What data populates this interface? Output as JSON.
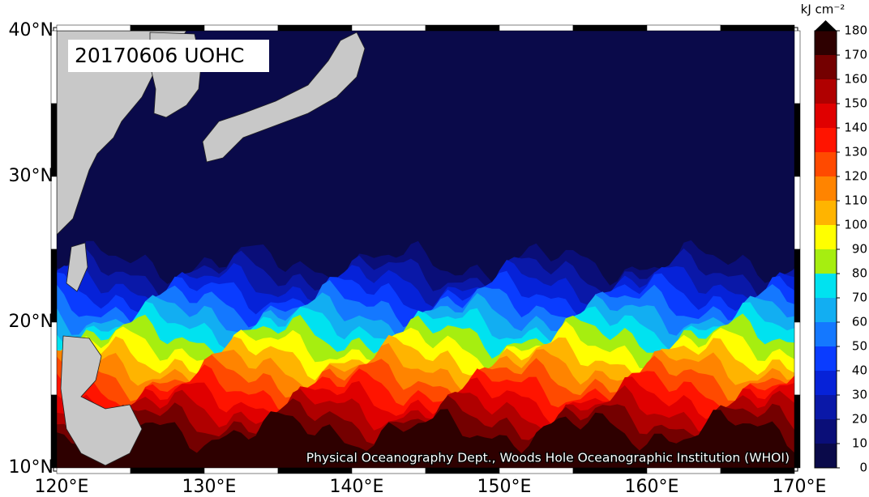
{
  "title": "20170606 UOHC",
  "credit": "Physical Oceanography Dept., Woods Hole Oceanographic Institution (WHOI)",
  "x_axis": {
    "ticks": [
      "120°E",
      "130°E",
      "140°E",
      "150°E",
      "160°E",
      "170°E"
    ]
  },
  "y_axis": {
    "ticks": [
      "10°N",
      "20°N",
      "30°N",
      "40°N"
    ]
  },
  "colorbar": {
    "unit": "kJ cm⁻²",
    "ticks": [
      0,
      10,
      20,
      30,
      40,
      50,
      60,
      70,
      80,
      90,
      100,
      110,
      120,
      130,
      140,
      150,
      160,
      170,
      180
    ],
    "colors": [
      "#0a0a4a",
      "#0a0e78",
      "#0a18a8",
      "#0622d8",
      "#0a3cff",
      "#1478ff",
      "#12aef2",
      "#00e2f0",
      "#a6ee10",
      "#ffff00",
      "#ffb400",
      "#ff8400",
      "#ff4a00",
      "#ff1400",
      "#e00000",
      "#b00000",
      "#740000",
      "#2e0000"
    ]
  }
}
